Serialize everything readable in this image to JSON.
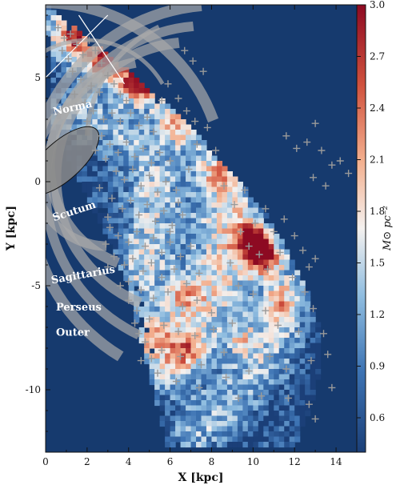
{
  "chart_data": {
    "type": "heatmap",
    "title": "",
    "xlabel": "X [kpc]",
    "ylabel": "Y [kpc]",
    "xlim": [
      0,
      15
    ],
    "ylim": [
      -13,
      8.5
    ],
    "xticks": [
      0,
      2,
      4,
      6,
      8,
      10,
      12,
      14
    ],
    "xtick_labels": [
      "0",
      "2",
      "4",
      "6",
      "8",
      "10",
      "12",
      "14"
    ],
    "yticks": [
      5,
      0,
      -5,
      -10
    ],
    "ytick_labels": [
      "5",
      "0",
      "-5",
      "-10"
    ],
    "colorbar": {
      "label": "M⊙ pc⁻²",
      "range": [
        0.4,
        3.0
      ],
      "ticks": [
        0.6,
        0.9,
        1.2,
        1.5,
        1.8,
        2.1,
        2.4,
        2.7,
        3.0
      ],
      "tick_labels": [
        "0.6",
        "0.9",
        "1.2",
        "1.5",
        "1.8",
        "2.1",
        "2.4",
        "2.7",
        "3.0"
      ],
      "colormap": "RdBu_r"
    },
    "background_color": "#163a6e",
    "arm_labels": [
      {
        "text": "Norma",
        "x": 0.4,
        "y": 3.2
      },
      {
        "text": "Scutum",
        "x": 0.4,
        "y": -1.9
      },
      {
        "text": "Sagittarius",
        "x": 0.3,
        "y": -4.9
      },
      {
        "text": "Perseus",
        "x": 0.5,
        "y": -6.2
      },
      {
        "text": "Outer",
        "x": 0.5,
        "y": -7.4
      }
    ],
    "hotspots": [
      {
        "x": 3.0,
        "y": 5.8,
        "v": 3.0
      },
      {
        "x": 1.6,
        "y": 7.2,
        "v": 2.5
      },
      {
        "x": 4.3,
        "y": 4.7,
        "v": 2.6
      },
      {
        "x": 5.3,
        "y": 4.5,
        "v": 2.2
      },
      {
        "x": 7.8,
        "y": 3.8,
        "v": 2.8
      },
      {
        "x": 6.3,
        "y": 2.6,
        "v": 2.0
      },
      {
        "x": 10.0,
        "y": -2.8,
        "v": 3.0
      },
      {
        "x": 10.5,
        "y": -3.7,
        "v": 2.7
      },
      {
        "x": 5.0,
        "y": -7.4,
        "v": 2.0
      },
      {
        "x": 6.8,
        "y": -8.2,
        "v": 1.9
      },
      {
        "x": 8.4,
        "y": 0.4,
        "v": 1.6
      },
      {
        "x": 11.2,
        "y": -5.8,
        "v": 1.8
      },
      {
        "x": 6.6,
        "y": -5.4,
        "v": 1.7
      },
      {
        "x": 9.5,
        "y": -7.6,
        "v": 1.7
      }
    ],
    "star_markers": [
      [
        0.6,
        7.4
      ],
      [
        0.9,
        6.9
      ],
      [
        1.2,
        7.1
      ],
      [
        0.8,
        6.3
      ],
      [
        1.1,
        5.9
      ],
      [
        1.5,
        6.6
      ],
      [
        1.8,
        6.1
      ],
      [
        2.1,
        6.8
      ],
      [
        2.4,
        6.3
      ],
      [
        2.7,
        5.7
      ],
      [
        3.0,
        5.1
      ],
      [
        1.3,
        5.3
      ],
      [
        1.7,
        4.9
      ],
      [
        2.2,
        4.6
      ],
      [
        2.6,
        4.3
      ],
      [
        3.3,
        4.7
      ],
      [
        3.6,
        4.2
      ],
      [
        3.9,
        3.9
      ],
      [
        1.4,
        4.2
      ],
      [
        1.9,
        3.8
      ],
      [
        2.3,
        3.4
      ],
      [
        2.8,
        3.0
      ],
      [
        3.2,
        3.3
      ],
      [
        3.6,
        2.9
      ],
      [
        4.1,
        3.3
      ],
      [
        4.5,
        2.7
      ],
      [
        4.9,
        3.1
      ],
      [
        5.2,
        2.4
      ],
      [
        2.7,
        2.2
      ],
      [
        3.1,
        1.8
      ],
      [
        3.5,
        1.4
      ],
      [
        3.9,
        1.9
      ],
      [
        4.3,
        1.2
      ],
      [
        4.7,
        1.6
      ],
      [
        5.1,
        0.9
      ],
      [
        5.5,
        1.4
      ],
      [
        6.0,
        1.0
      ],
      [
        3.4,
        0.5
      ],
      [
        3.8,
        0.1
      ],
      [
        4.2,
        0.6
      ],
      [
        4.6,
        -0.2
      ],
      [
        5.0,
        0.3
      ],
      [
        5.4,
        -0.5
      ],
      [
        5.8,
        0.0
      ],
      [
        6.3,
        -0.4
      ],
      [
        3.2,
        -0.8
      ],
      [
        3.7,
        -1.3
      ],
      [
        4.1,
        -0.9
      ],
      [
        4.5,
        -1.6
      ],
      [
        4.9,
        -1.1
      ],
      [
        5.3,
        -1.9
      ],
      [
        5.7,
        -1.4
      ],
      [
        6.1,
        -2.1
      ],
      [
        6.6,
        -1.6
      ],
      [
        3.1,
        -2.2
      ],
      [
        3.5,
        -2.6
      ],
      [
        4.0,
        -2.9
      ],
      [
        4.4,
        -2.4
      ],
      [
        4.8,
        -3.1
      ],
      [
        5.2,
        -2.7
      ],
      [
        5.6,
        -3.4
      ],
      [
        6.0,
        -2.9
      ],
      [
        6.5,
        -3.6
      ],
      [
        7.0,
        -3.1
      ],
      [
        3.3,
        -3.6
      ],
      [
        3.8,
        -4.0
      ],
      [
        4.2,
        -3.7
      ],
      [
        4.7,
        -4.3
      ],
      [
        5.1,
        -3.9
      ],
      [
        5.6,
        -4.6
      ],
      [
        6.2,
        -4.2
      ],
      [
        6.8,
        -4.9
      ],
      [
        7.4,
        -4.4
      ],
      [
        4.0,
        -4.8
      ],
      [
        4.6,
        -5.2
      ],
      [
        5.2,
        -5.6
      ],
      [
        5.9,
        -5.3
      ],
      [
        6.6,
        -6.0
      ],
      [
        7.3,
        -5.7
      ],
      [
        8.0,
        -6.3
      ],
      [
        4.4,
        -6.2
      ],
      [
        5.0,
        -6.6
      ],
      [
        5.7,
        -6.9
      ],
      [
        6.4,
        -7.2
      ],
      [
        7.2,
        -7.4
      ],
      [
        8.1,
        -7.1
      ],
      [
        4.8,
        -7.7
      ],
      [
        5.6,
        -8.1
      ],
      [
        6.5,
        -8.4
      ],
      [
        7.5,
        -8.8
      ],
      [
        8.6,
        -8.2
      ],
      [
        4.6,
        -8.6
      ],
      [
        5.4,
        -9.2
      ],
      [
        6.3,
        -9.6
      ],
      [
        7.4,
        -9.9
      ],
      [
        8.7,
        -9.4
      ],
      [
        9.8,
        -9.1
      ],
      [
        6.0,
        -2.4
      ],
      [
        6.4,
        -1.0
      ],
      [
        6.9,
        0.6
      ],
      [
        7.3,
        1.8
      ],
      [
        7.8,
        2.6
      ],
      [
        8.2,
        1.5
      ],
      [
        8.6,
        -0.2
      ],
      [
        9.1,
        -1.1
      ],
      [
        9.6,
        -0.4
      ],
      [
        10.1,
        -2.0
      ],
      [
        10.6,
        -1.3
      ],
      [
        11.0,
        -2.4
      ],
      [
        11.5,
        -1.8
      ],
      [
        12.0,
        -2.6
      ],
      [
        12.4,
        -3.3
      ],
      [
        12.7,
        -4.1
      ],
      [
        13.0,
        -3.7
      ],
      [
        11.3,
        -3.4
      ],
      [
        11.9,
        -4.6
      ],
      [
        12.5,
        -5.3
      ],
      [
        12.9,
        -6.1
      ],
      [
        12.2,
        -7.2
      ],
      [
        13.4,
        -7.3
      ],
      [
        12.8,
        -8.6
      ],
      [
        13.6,
        -8.3
      ],
      [
        13.0,
        -11.4
      ],
      [
        9.3,
        -10.4
      ],
      [
        10.4,
        -10.3
      ],
      [
        11.7,
        -10.4
      ],
      [
        12.7,
        -10.7
      ],
      [
        13.8,
        -9.9
      ],
      [
        10.8,
        -8.4
      ],
      [
        11.6,
        -9.0
      ],
      [
        13.0,
        2.8
      ],
      [
        11.6,
        2.2
      ],
      [
        12.1,
        1.6
      ],
      [
        12.6,
        1.9
      ],
      [
        13.3,
        1.5
      ],
      [
        14.2,
        1.0
      ],
      [
        14.6,
        0.4
      ],
      [
        13.8,
        0.8
      ],
      [
        12.9,
        0.2
      ],
      [
        13.5,
        -0.2
      ],
      [
        7.6,
        5.3
      ],
      [
        7.1,
        5.8
      ],
      [
        6.7,
        6.3
      ],
      [
        6.4,
        4.0
      ],
      [
        6.8,
        3.4
      ],
      [
        7.2,
        2.9
      ],
      [
        5.6,
        3.9
      ],
      [
        5.9,
        4.7
      ],
      [
        2.0,
        2.9
      ],
      [
        2.4,
        1.5
      ],
      [
        2.9,
        1.1
      ],
      [
        2.6,
        -0.3
      ],
      [
        3.0,
        -1.7
      ],
      [
        2.9,
        -3.0
      ],
      [
        3.0,
        -4.1
      ],
      [
        3.6,
        -5.0
      ],
      [
        4.0,
        -5.7
      ],
      [
        4.3,
        -6.8
      ],
      [
        4.5,
        -7.3
      ],
      [
        5.1,
        -8.5
      ],
      [
        9.8,
        -3.1
      ],
      [
        10.3,
        -3.5
      ],
      [
        10.7,
        -4.2
      ],
      [
        9.4,
        -2.4
      ],
      [
        8.9,
        -3.9
      ],
      [
        9.3,
        -5.0
      ],
      [
        10.0,
        -5.4
      ],
      [
        10.6,
        -6.2
      ],
      [
        11.2,
        -6.9
      ],
      [
        9.0,
        -6.8
      ]
    ]
  }
}
